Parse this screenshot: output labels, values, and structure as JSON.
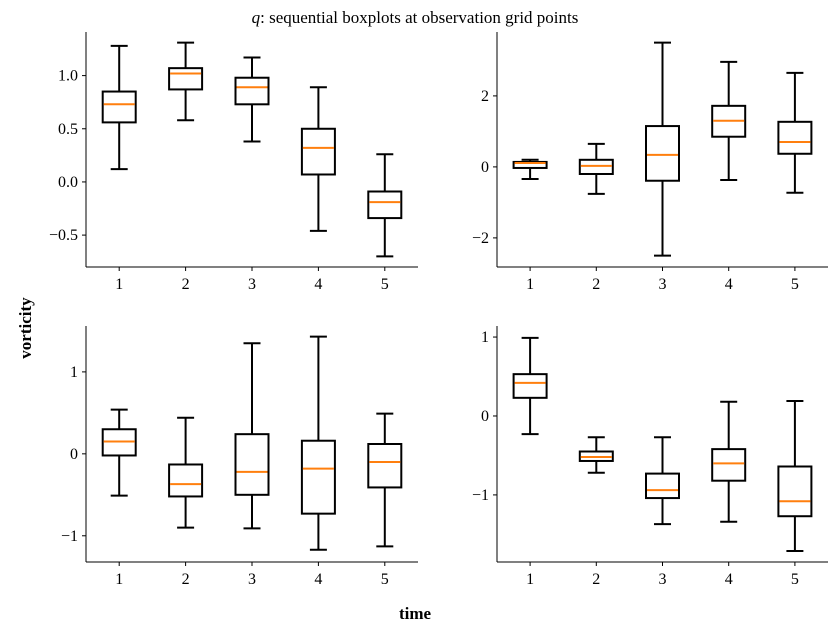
{
  "chart_data": {
    "type": "boxplot",
    "title_symbol": "q",
    "title_rest": ": sequential boxplots at observation grid points",
    "xlabel": "time",
    "ylabel": "vorticity",
    "median_color": "#ff7f0e",
    "box_color": "#000000",
    "grid": false,
    "panels": [
      {
        "categories": [
          "1",
          "2",
          "3",
          "4",
          "5"
        ],
        "ylim": [
          -0.8,
          1.41
        ],
        "yticks": [
          -0.5,
          0.0,
          0.5,
          1.0
        ],
        "ytick_labels": [
          "−0.5",
          "0.0",
          "0.5",
          "1.0"
        ],
        "boxes": [
          {
            "whislo": 0.12,
            "q1": 0.56,
            "med": 0.73,
            "q3": 0.85,
            "whishi": 1.28
          },
          {
            "whislo": 0.58,
            "q1": 0.87,
            "med": 1.02,
            "q3": 1.07,
            "whishi": 1.31
          },
          {
            "whislo": 0.38,
            "q1": 0.73,
            "med": 0.89,
            "q3": 0.98,
            "whishi": 1.17
          },
          {
            "whislo": -0.46,
            "q1": 0.07,
            "med": 0.32,
            "q3": 0.5,
            "whishi": 0.89
          },
          {
            "whislo": -0.7,
            "q1": -0.34,
            "med": -0.19,
            "q3": -0.09,
            "whishi": 0.26
          }
        ]
      },
      {
        "categories": [
          "1",
          "2",
          "3",
          "4",
          "5"
        ],
        "ylim": [
          -2.82,
          3.8
        ],
        "yticks": [
          -2,
          0,
          2
        ],
        "ytick_labels": [
          "−2",
          "0",
          "2"
        ],
        "boxes": [
          {
            "whislo": -0.34,
            "q1": -0.03,
            "med": 0.11,
            "q3": 0.14,
            "whishi": 0.2
          },
          {
            "whislo": -0.76,
            "q1": -0.2,
            "med": 0.03,
            "q3": 0.2,
            "whishi": 0.65
          },
          {
            "whislo": -2.5,
            "q1": -0.39,
            "med": 0.34,
            "q3": 1.15,
            "whishi": 3.5
          },
          {
            "whislo": -0.37,
            "q1": 0.85,
            "med": 1.3,
            "q3": 1.72,
            "whishi": 2.96
          },
          {
            "whislo": -0.73,
            "q1": 0.37,
            "med": 0.7,
            "q3": 1.27,
            "whishi": 2.65
          }
        ]
      },
      {
        "categories": [
          "1",
          "2",
          "3",
          "4",
          "5"
        ],
        "ylim": [
          -1.32,
          1.56
        ],
        "yticks": [
          -1,
          0,
          1
        ],
        "ytick_labels": [
          "−1",
          "0",
          "1"
        ],
        "boxes": [
          {
            "whislo": -0.51,
            "q1": -0.02,
            "med": 0.15,
            "q3": 0.3,
            "whishi": 0.54
          },
          {
            "whislo": -0.9,
            "q1": -0.52,
            "med": -0.37,
            "q3": -0.13,
            "whishi": 0.44
          },
          {
            "whislo": -0.91,
            "q1": -0.5,
            "med": -0.22,
            "q3": 0.24,
            "whishi": 1.35
          },
          {
            "whislo": -1.17,
            "q1": -0.73,
            "med": -0.18,
            "q3": 0.16,
            "whishi": 1.43
          },
          {
            "whislo": -1.13,
            "q1": -0.41,
            "med": -0.1,
            "q3": 0.12,
            "whishi": 0.49
          }
        ]
      },
      {
        "categories": [
          "1",
          "2",
          "3",
          "4",
          "5"
        ],
        "ylim": [
          -1.85,
          1.14
        ],
        "yticks": [
          -1,
          0,
          1
        ],
        "ytick_labels": [
          "−1",
          "0",
          "1"
        ],
        "boxes": [
          {
            "whislo": -0.23,
            "q1": 0.23,
            "med": 0.42,
            "q3": 0.53,
            "whishi": 0.99
          },
          {
            "whislo": -0.72,
            "q1": -0.57,
            "med": -0.52,
            "q3": -0.45,
            "whishi": -0.27
          },
          {
            "whislo": -1.37,
            "q1": -1.04,
            "med": -0.94,
            "q3": -0.73,
            "whishi": -0.27
          },
          {
            "whislo": -1.34,
            "q1": -0.82,
            "med": -0.6,
            "q3": -0.42,
            "whishi": 0.18
          },
          {
            "whislo": -1.71,
            "q1": -1.27,
            "med": -1.08,
            "q3": -0.64,
            "whishi": 0.19
          }
        ]
      }
    ]
  }
}
